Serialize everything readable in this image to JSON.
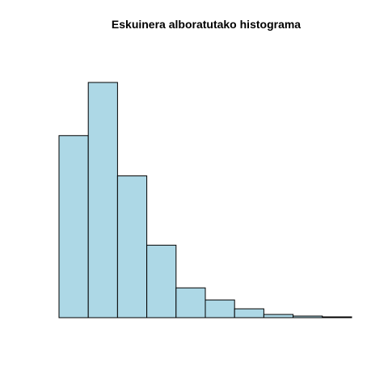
{
  "chart_data": {
    "type": "bar",
    "title": "Eskuinera alboratutako histograma",
    "xlabel": "",
    "ylabel": "",
    "bins": 10,
    "values": [
      226,
      292,
      176,
      90,
      37,
      22,
      11,
      4,
      2,
      1
    ],
    "axes_shown": false,
    "grid": false,
    "colors": {
      "fill": "#add8e6",
      "stroke": "#000000"
    }
  }
}
